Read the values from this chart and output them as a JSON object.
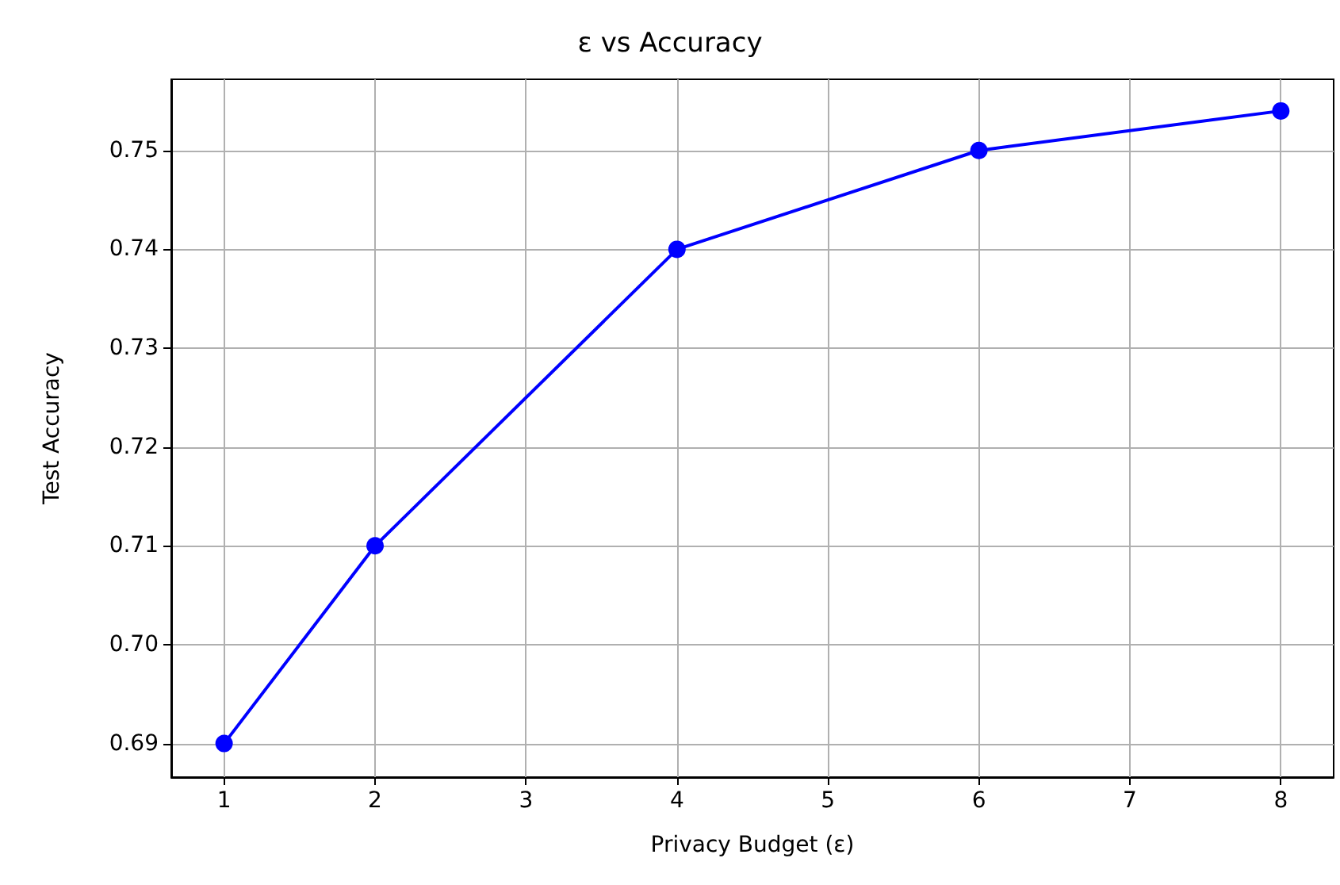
{
  "chart_data": {
    "type": "line",
    "title": "ε vs Accuracy",
    "xlabel": "Privacy Budget (ε)",
    "ylabel": "Test Accuracy",
    "x": [
      1,
      2,
      4,
      6,
      8
    ],
    "series": [
      {
        "color": "#0000ff",
        "values": [
          0.69,
          0.71,
          0.74,
          0.75,
          0.754
        ]
      }
    ],
    "xlim": [
      0.65,
      8.35
    ],
    "xticks": [
      1,
      2,
      3,
      4,
      5,
      6,
      7,
      8
    ],
    "ylim": [
      0.6866,
      0.7572
    ],
    "yticks": [
      0.69,
      {
        "value": 0.7,
        "label": "0.70"
      },
      0.71,
      0.72,
      0.73,
      0.74,
      0.75
    ],
    "grid": true,
    "marker": "circle",
    "line_style": "solid"
  }
}
